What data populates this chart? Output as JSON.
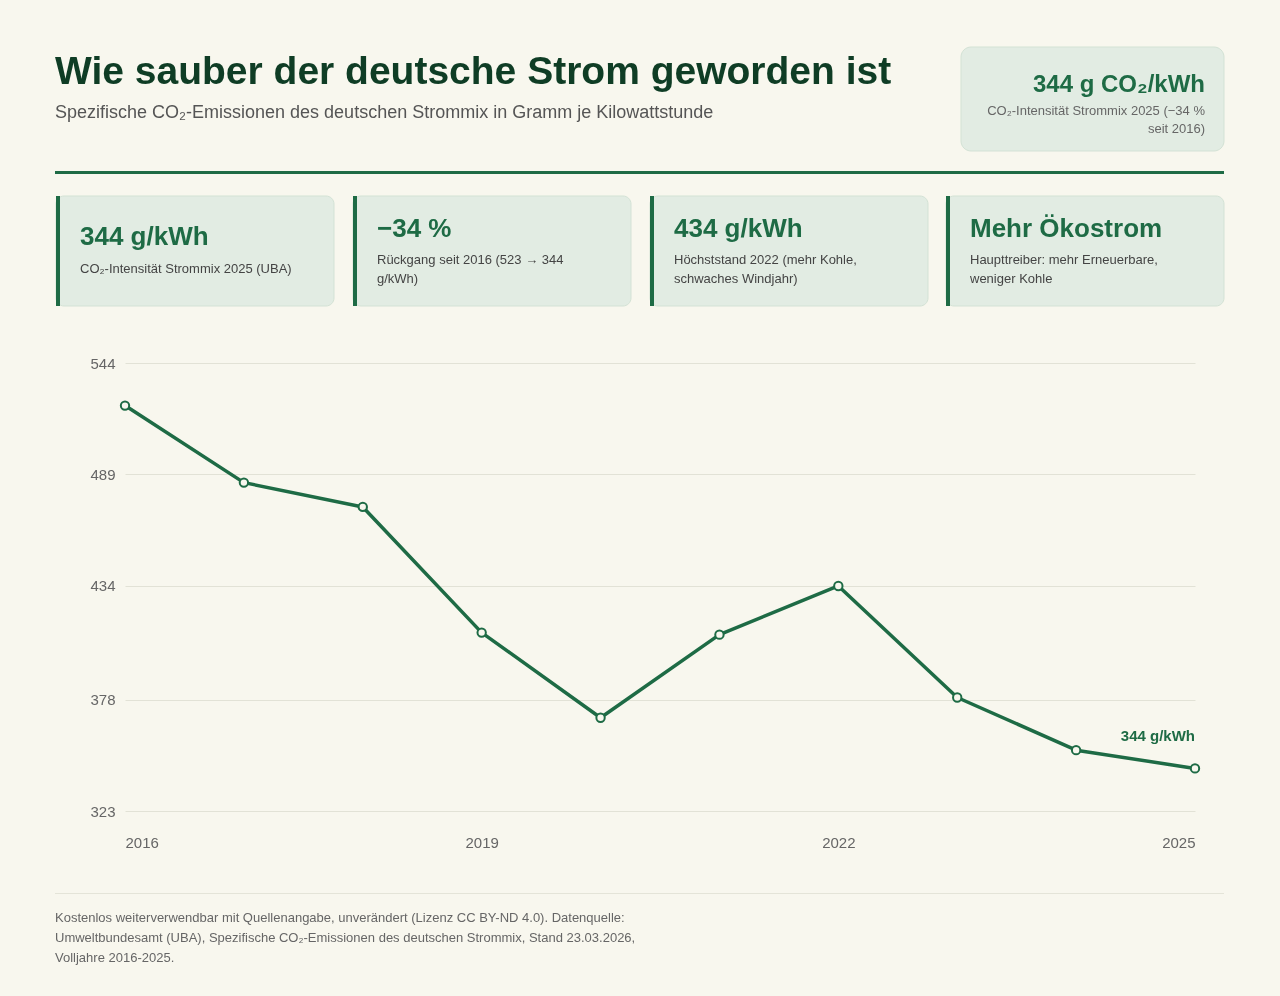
{
  "chart_data": {
    "type": "line",
    "title": "Wie sauber der deutsche Strom geworden ist",
    "subtitle": "Spezifische CO₂-Emissionen des deutschen Strommix in Gramm je Kilowattstunde",
    "x": [
      2016,
      2017,
      2018,
      2019,
      2020,
      2021,
      2022,
      2023,
      2024,
      2025
    ],
    "series": [
      {
        "color": "#1e6b45",
        "values": [
          523,
          485,
          473,
          411,
          369,
          410,
          434,
          379,
          353,
          344
        ]
      }
    ],
    "xlim": [
      2016,
      2025
    ],
    "xticks": [
      2016,
      2019,
      2022,
      2025
    ],
    "ylim": [
      323,
      544
    ],
    "yticks": [
      323,
      378,
      434,
      489,
      544
    ],
    "grid": "y",
    "marker": "circle",
    "line_style": "solid",
    "annotations": [
      "344 g CO₂/kWh",
      "CO₂-Intensität Strommix 2025 (−34 % seit 2016)",
      "344 g/kWh",
      "CO₂-Intensität Strommix 2025 (UBA)",
      "−34 %",
      "Rückgang seit 2016 (523 → 344 g/kWh)",
      "434 g/kWh",
      "Höchststand 2022 (mehr Kohle, schwaches Windjahr)",
      "Mehr Ökostrom",
      "Haupttreiber: mehr Erneuerbare, weniger Kohle",
      {
        "text": "344 g/kWh",
        "x": 2025,
        "y": 344
      },
      "Kostenlos weiterverwendbar mit Quellenangabe, unverändert (Lizenz CC BY-ND 4.0). Datenquelle: Umweltbundesamt (UBA), Spezifische CO₂-Emissionen des deutschen Strommix, Stand 23.03.2026, Volljahre 2016-2025."
    ]
  }
}
